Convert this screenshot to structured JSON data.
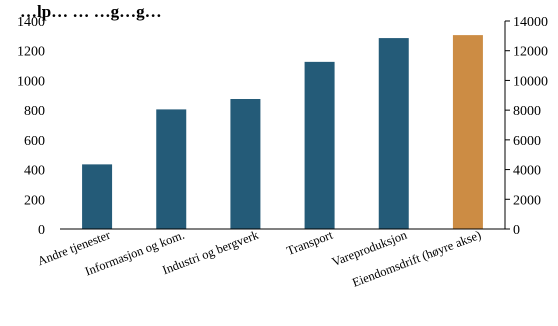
{
  "chart_data": {
    "type": "bar",
    "title_visible": "…lp… … …g…g…",
    "categories": [
      "Andre tjenester",
      "Informasjon og kom.",
      "Industri og bergverk",
      "Transport",
      "Vareproduksjon",
      "Eiendomsdrift (høyre akse)"
    ],
    "values": [
      435,
      805,
      875,
      1125,
      1285,
      13050
    ],
    "axis": [
      "left",
      "left",
      "left",
      "left",
      "left",
      "right"
    ],
    "left_axis": {
      "ylim": [
        0,
        1400
      ],
      "ticks": [
        "0",
        "200",
        "400",
        "600",
        "800",
        "1000",
        "1200",
        "1400"
      ]
    },
    "right_axis": {
      "ylim": [
        0,
        14000
      ],
      "ticks": [
        "0",
        "2000",
        "4000",
        "6000",
        "8000",
        "10000",
        "12000",
        "14000"
      ]
    },
    "grid": false,
    "legend": "none",
    "colors": {
      "left_series": "#245b78",
      "right_series": "#cc8c44"
    }
  }
}
